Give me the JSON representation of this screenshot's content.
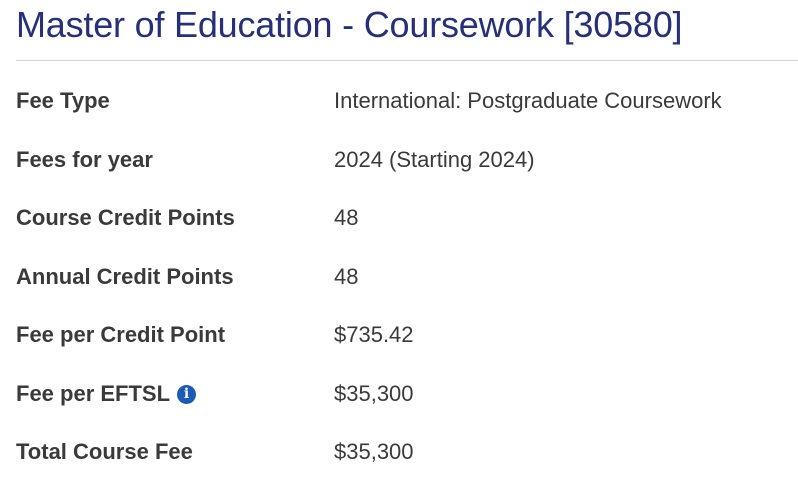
{
  "title": "Master of Education - Coursework [30580]",
  "colors": {
    "title": "#262f7c",
    "info_icon": "#1c5bb5",
    "text": "#3a3a3a"
  },
  "rows": [
    {
      "label": "Fee Type",
      "value": "International: Postgraduate Coursework"
    },
    {
      "label": "Fees for year",
      "value": "2024 (Starting 2024)"
    },
    {
      "label": "Course Credit Points",
      "value": "48"
    },
    {
      "label": "Annual Credit Points",
      "value": "48"
    },
    {
      "label": "Fee per Credit Point",
      "value": "$735.42"
    },
    {
      "label": "Fee per EFTSL",
      "value": "$35,300",
      "icon": "info-icon"
    },
    {
      "label": "Total Course Fee",
      "value": "$35,300"
    }
  ]
}
